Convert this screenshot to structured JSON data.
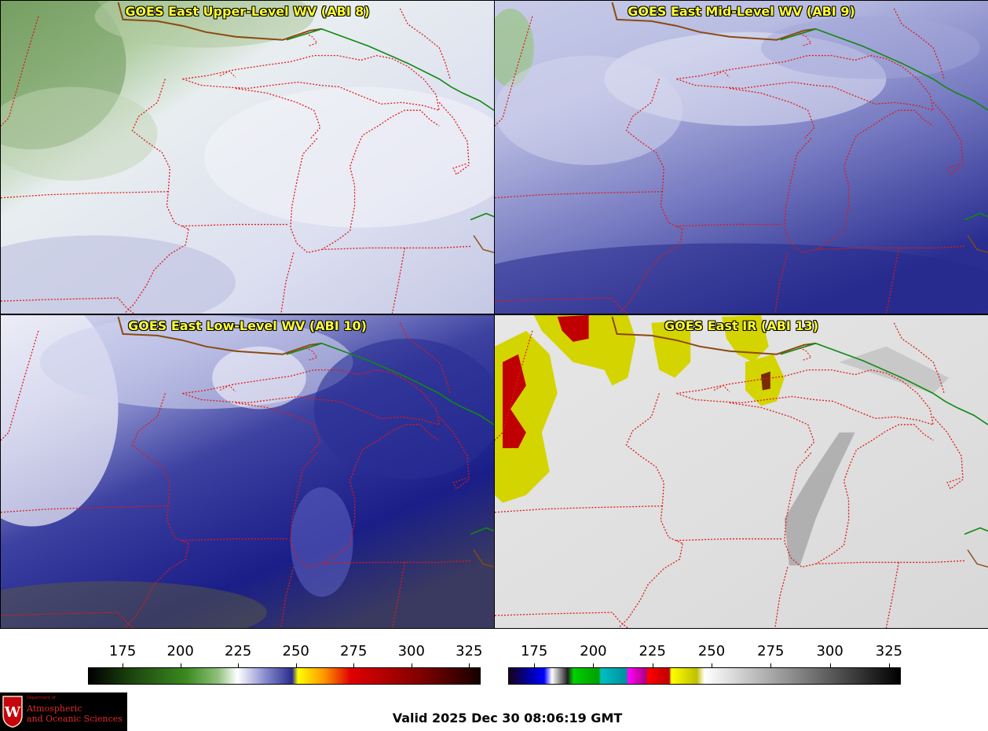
{
  "panels": [
    {
      "id": "upper",
      "title": "GOES East Upper-Level WV (ABI 8)"
    },
    {
      "id": "mid",
      "title": "GOES East Mid-Level WV (ABI 9)"
    },
    {
      "id": "low",
      "title": "GOES East Low-Level WV (ABI 10)"
    },
    {
      "id": "ir",
      "title": "GOES East IR (ABI 13)"
    }
  ],
  "colorbars": {
    "wv": {
      "ticks": [
        "175",
        "200",
        "225",
        "250",
        "275",
        "300",
        "325"
      ],
      "range": [
        160,
        330
      ],
      "stops": [
        {
          "at": 0.0,
          "color": "#000000"
        },
        {
          "at": 0.12,
          "color": "#1f4a10"
        },
        {
          "at": 0.25,
          "color": "#3a8a20"
        },
        {
          "at": 0.33,
          "color": "#8ec07a"
        },
        {
          "at": 0.38,
          "color": "#ffffff"
        },
        {
          "at": 0.45,
          "color": "#8a8ed0"
        },
        {
          "at": 0.52,
          "color": "#2a2d8a"
        },
        {
          "at": 0.535,
          "color": "#ffff00"
        },
        {
          "at": 0.6,
          "color": "#ff9900"
        },
        {
          "at": 0.67,
          "color": "#e00000"
        },
        {
          "at": 0.85,
          "color": "#800000"
        },
        {
          "at": 1.0,
          "color": "#150000"
        }
      ]
    },
    "ir": {
      "ticks": [
        "175",
        "200",
        "225",
        "250",
        "275",
        "300",
        "325"
      ],
      "range": [
        164,
        330
      ],
      "stops": [
        {
          "at": 0.0,
          "color": "#1a001a"
        },
        {
          "at": 0.05,
          "color": "#0000a0"
        },
        {
          "at": 0.09,
          "color": "#0000ff"
        },
        {
          "at": 0.11,
          "color": "#ffffff"
        },
        {
          "at": 0.15,
          "color": "#202020"
        },
        {
          "at": 0.165,
          "color": "#00d000"
        },
        {
          "at": 0.23,
          "color": "#00a000"
        },
        {
          "at": 0.235,
          "color": "#00c0c0"
        },
        {
          "at": 0.3,
          "color": "#0090a0"
        },
        {
          "at": 0.305,
          "color": "#ff00ff"
        },
        {
          "at": 0.35,
          "color": "#b00080"
        },
        {
          "at": 0.355,
          "color": "#ff0000"
        },
        {
          "at": 0.41,
          "color": "#c00000"
        },
        {
          "at": 0.415,
          "color": "#ffff00"
        },
        {
          "at": 0.48,
          "color": "#c0c000"
        },
        {
          "at": 0.5,
          "color": "#ffffff"
        },
        {
          "at": 1.0,
          "color": "#000000"
        }
      ]
    }
  },
  "logo": {
    "dept": "Department of",
    "line1": "Atmospheric",
    "line2": "and Oceanic Sciences"
  },
  "valid_time": "Valid 2025 Dec 30 08:06:19 GMT",
  "colors": {
    "state_border": "#e01818",
    "country_border": "#118811",
    "coast": "#8a4a10",
    "title": "#ffff33"
  }
}
